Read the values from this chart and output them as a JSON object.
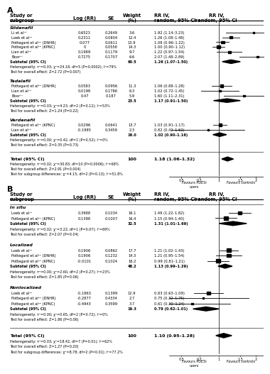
{
  "panel_A": {
    "title": "A",
    "subgroups": [
      {
        "name": "Sildenafil",
        "studies": [
          {
            "label": "Li et al¹³",
            "log_rr": 0.6523,
            "se": 0.2649,
            "weight": 3.6,
            "rr_ci": "1.92 (1.14–3.23)"
          },
          {
            "label": "Loeb et al¹⁴",
            "log_rr": 0.2311,
            "se": 0.0804,
            "weight": 12.4,
            "rr_ci": "1.26 (1.08–1.48)"
          },
          {
            "label": "Pottegard et al²⁰ (DNHR)",
            "log_rr": 0.077,
            "se": 0.0611,
            "weight": 13.9,
            "rr_ci": "1.08 (0.96–1.22)"
          },
          {
            "label": "Pottegard et al²⁰ (KPNC)",
            "log_rr": 0,
            "se": 0.0558,
            "weight": 14.3,
            "rr_ci": "1.00 (0.90–1.12)"
          },
          {
            "label": "Lian et al¹⁸",
            "log_rr": 0.1989,
            "se": 0.1179,
            "weight": 9.7,
            "rr_ci": "1.22 (0.97–1.54)"
          },
          {
            "label": "Boor¹⁷",
            "log_rr": 0.7275,
            "se": 0.1707,
            "weight": 6.6,
            "rr_ci": "2.07 (1.48–2.89)"
          }
        ],
        "subtotal": {
          "weight": 60.5,
          "rr_ci": "1.26 (1.07–1.50)",
          "log_rr": 0.231,
          "ci_low": 1.07,
          "ci_high": 1.5
        },
        "het_text": "Heterogeneity: τ²=0.03; χ²=24.18, df=5 (P=0.0002); I²=79%",
        "effect_text": "Test for overall effect: Z=2.72 (P=0.007)"
      },
      {
        "name": "Tadalafil",
        "studies": [
          {
            "label": "Pottegard et al²⁰ (DNHR)",
            "log_rr": 0.0583,
            "se": 0.0956,
            "weight": 11.3,
            "rr_ci": "1.06 (0.88–1.28)"
          },
          {
            "label": "Lian et al¹⁸",
            "log_rr": 0.0198,
            "se": 0.1786,
            "weight": 6.3,
            "rr_ci": "1.02 (0.72–1.45)"
          },
          {
            "label": "Boor¹⁷",
            "log_rr": 0.47,
            "se": 0.187,
            "weight": 5.9,
            "rr_ci": "1.60 (1.11–2.31)"
          }
        ],
        "subtotal": {
          "weight": 23.5,
          "rr_ci": "1.17 (0.91–1.50)",
          "log_rr": 0.157,
          "ci_low": 0.91,
          "ci_high": 1.5
        },
        "het_text": "Heterogeneity: τ²=0.03; χ²=4.23, df=2 (P=0.12); I²=53%",
        "effect_text": "Test for overall effect: Z=1.24 (P=0.22)"
      },
      {
        "name": "Vardenafil",
        "studies": [
          {
            "label": "Pottegard et al²⁰ (KPNC)",
            "log_rr": 0.0296,
            "se": 0.0641,
            "weight": 13.7,
            "rr_ci": "1.03 (0.91–1.17)"
          },
          {
            "label": "Lian et al¹⁸",
            "log_rr": -0.1985,
            "se": 0.3459,
            "weight": 2.3,
            "rr_ci": "0.82 (0.42–1.62)"
          }
        ],
        "subtotal": {
          "weight": 16.0,
          "rr_ci": "1.02 (0.90–1.16)",
          "log_rr": 0.02,
          "ci_low": 0.9,
          "ci_high": 1.16
        },
        "het_text": "Heterogeneity: τ²=0.00; χ²=0.42, df=1 (P=0.52); I²=0%",
        "effect_text": "Test for overall effect: Z=0.35 (P=0.73)"
      }
    ],
    "total": {
      "weight": 100,
      "rr_ci": "1.18 (1.06–1.32)",
      "log_rr": 0.1655,
      "ci_low": 1.06,
      "ci_high": 1.32
    },
    "total_het": "Heterogeneity: τ²=0.02; χ²=30.83, df=10 (P=0.0006); I²=68%",
    "total_effect": "Test for overall effect: Z=2.91 (P=0.004)",
    "subgroup_diff": "Test for subgroup differences: χ²=4.15, df=2 (P=0.13); I²=51.8%",
    "xlim": [
      0.4,
      2.3
    ],
    "xticks": [
      0.5,
      0.7,
      1.0,
      1.5,
      2.0
    ],
    "xticklabels": [
      "0.5",
      "0.7",
      "1",
      "1.5",
      "2"
    ],
    "xlabel_left": "Favours PDE5i\nusers",
    "xlabel_right": "Favours controls"
  },
  "panel_B": {
    "title": "B",
    "subgroups": [
      {
        "name": "In situ",
        "studies": [
          {
            "label": "Loeb et al¹⁴",
            "log_rr": 0.3988,
            "se": 0.1034,
            "weight": 16.1,
            "rr_ci": "1.49 (1.22–1.82)"
          },
          {
            "label": "Pottegard et al²⁰ (KPNC)",
            "log_rr": 0.1398,
            "se": 0.1007,
            "weight": 16.4,
            "rr_ci": "1.15 (0.94–1.40)"
          }
        ],
        "subtotal": {
          "weight": 32.5,
          "rr_ci": "1.31 (1.01–1.69)",
          "log_rr": 0.27,
          "ci_low": 1.01,
          "ci_high": 1.69
        },
        "het_text": "Heterogeneity: τ²=0.02; χ²=3.22, df=1 (P=0.07); I²=69%",
        "effect_text": "Test for overall effect: Z=2.07 (P=0.04)"
      },
      {
        "name": "Localized",
        "studies": [
          {
            "label": "Loeb et al¹⁴",
            "log_rr": 0.1906,
            "se": 0.0862,
            "weight": 17.7,
            "rr_ci": "1.21 (1.02–1.43)"
          },
          {
            "label": "Pottegard et al²⁰ (DNHR)",
            "log_rr": 0.1906,
            "se": 0.1232,
            "weight": 14.3,
            "rr_ci": "1.21 (0.95–1.54)"
          },
          {
            "label": "Pottegard et al²⁰ (KPNC)",
            "log_rr": -0.0101,
            "se": 0.1024,
            "weight": 16.2,
            "rr_ci": "0.99 (0.81–1.21)"
          }
        ],
        "subtotal": {
          "weight": 48.2,
          "rr_ci": "1.13 (0.99–1.29)",
          "log_rr": 0.122,
          "ci_low": 0.99,
          "ci_high": 1.29
        },
        "het_text": "Heterogeneity: τ²=0.00; χ²=2.60, df=2 (P=0.27); I²=23%",
        "effect_text": "Test for overall effect: Z=1.85 (P=0.06)"
      },
      {
        "name": "Nonlocalized",
        "studies": [
          {
            "label": "Loeb et al¹⁴",
            "log_rr": -0.1863,
            "se": 0.1399,
            "weight": 12.9,
            "rr_ci": "0.83 (0.63–1.09)"
          },
          {
            "label": "Pottegard et al²⁰ (DNHR)",
            "log_rr": -0.2877,
            "se": 0.4334,
            "weight": 2.7,
            "rr_ci": "0.75 (0.32–1.75)"
          },
          {
            "label": "Pottegard et al²⁰ (KPNC)",
            "log_rr": -0.4943,
            "se": 0.3599,
            "weight": 3.7,
            "rr_ci": "0.61 (0.30–1.24)"
          }
        ],
        "subtotal": {
          "weight": 19.3,
          "rr_ci": "0.79 (0.62–1.01)",
          "log_rr": -0.236,
          "ci_low": 0.62,
          "ci_high": 1.01
        },
        "het_text": "Heterogeneity: τ²=0.00; χ²=0.65, df=2 (P=0.72); I²=0%",
        "effect_text": "Test for overall effect: Z=1.86 (P=0.06)"
      }
    ],
    "total": {
      "weight": 100,
      "rr_ci": "1.10 (0.95–1.28)",
      "log_rr": 0.0953,
      "ci_low": 0.95,
      "ci_high": 1.28
    },
    "total_het": "Heterogeneity: τ²=0.03; χ²=18.42, df=7 (P=0.01); I²=62%",
    "total_effect": "Test for overall effect: Z=1.27 (P=0.20)",
    "subgroup_diff": "Test for subgroup differences: χ²=8.78, df=2 (P=0.01); I²=77.2%",
    "xlim": [
      0.4,
      2.3
    ],
    "xticks": [
      0.5,
      0.7,
      1.0,
      1.5,
      2.0
    ],
    "xticklabels": [
      "0.5",
      "0.7",
      "1",
      "1.5",
      "2"
    ],
    "xlabel_left": "Favours PDE5i\nusers",
    "xlabel_right": "Favours controls"
  }
}
